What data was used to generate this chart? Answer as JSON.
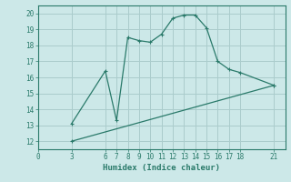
{
  "xlabel": "Humidex (Indice chaleur)",
  "line1_x": [
    3,
    6,
    7,
    8,
    9,
    10,
    11,
    12,
    13,
    14,
    15,
    16,
    17,
    18,
    21
  ],
  "line1_y": [
    13.1,
    16.4,
    13.3,
    18.5,
    18.3,
    18.2,
    18.7,
    19.7,
    19.9,
    19.9,
    19.1,
    17.0,
    16.5,
    16.3,
    15.5
  ],
  "line2_x": [
    3,
    21
  ],
  "line2_y": [
    12.0,
    15.5
  ],
  "line_color": "#2a7a6a",
  "bg_color": "#cce8e8",
  "grid_color": "#aacccc",
  "xlim": [
    0,
    22
  ],
  "ylim": [
    11.5,
    20.5
  ],
  "xticks": [
    0,
    3,
    6,
    7,
    8,
    9,
    10,
    11,
    12,
    13,
    14,
    15,
    16,
    17,
    18,
    21
  ],
  "yticks": [
    12,
    13,
    14,
    15,
    16,
    17,
    18,
    19,
    20
  ],
  "tick_fontsize": 5.5,
  "label_fontsize": 6.5,
  "marker": "+"
}
